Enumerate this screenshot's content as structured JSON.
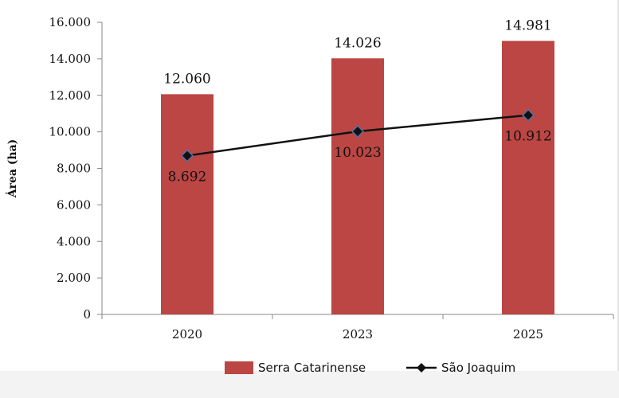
{
  "chart_data": {
    "type": "bar",
    "categories": [
      "2020",
      "2023",
      "2025"
    ],
    "series": [
      {
        "name": "Serra Catarinense",
        "kind": "bar",
        "color": "#bb4643",
        "values": [
          12060,
          14026,
          14981
        ],
        "labels": [
          "12.060",
          "14.026",
          "14.981"
        ]
      },
      {
        "name": "São Joaquim",
        "kind": "line",
        "color": "#111111",
        "marker": "diamond",
        "values": [
          8692,
          10023,
          10912
        ],
        "labels": [
          "8.692",
          "10.023",
          "10.912"
        ]
      }
    ],
    "ylabel": "Área (ha)",
    "xlabel": "",
    "ylim": [
      0,
      16000
    ],
    "yticks": [
      0,
      2000,
      4000,
      6000,
      8000,
      10000,
      12000,
      14000,
      16000
    ],
    "ytick_labels": [
      "0",
      "2.000",
      "4.000",
      "6.000",
      "8.000",
      "10.000",
      "12.000",
      "14.000",
      "16.000"
    ],
    "legend_position": "bottom",
    "grid": false
  }
}
